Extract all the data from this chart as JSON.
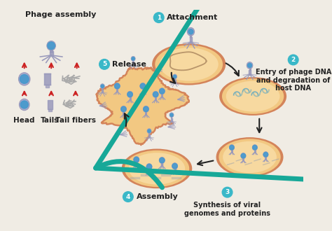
{
  "bg_color": "#f0ece4",
  "labels": {
    "step1": "Attachment",
    "step2": "Entry of phage DNA\nand degradation of\nhost DNA",
    "step3": "Synthesis of viral\ngenomes and proteins",
    "step4": "Assembly",
    "step5": "Release",
    "phage_assembly": "Phage assembly",
    "head": "Head",
    "tails": "Tails",
    "tail_fibers": "Tail fibers"
  },
  "step_circle_color": "#3ab8c8",
  "step_text_color": "#ffffff",
  "label_text_color": "#222222",
  "cell_fill": "#f2c882",
  "cell_edge": "#d4845a",
  "cell_inner": "#f7d9a0",
  "arrow_color": "#222222",
  "teal_arrow_color": "#17a898",
  "phage_body_color": "#9999bb",
  "phage_head_color": "#aaaacc",
  "blue_spot_color": "#4499cc",
  "red_arrow_color": "#cc2222",
  "gray_fiber_color": "#aaaaaa",
  "dna_color": "#b8956a"
}
